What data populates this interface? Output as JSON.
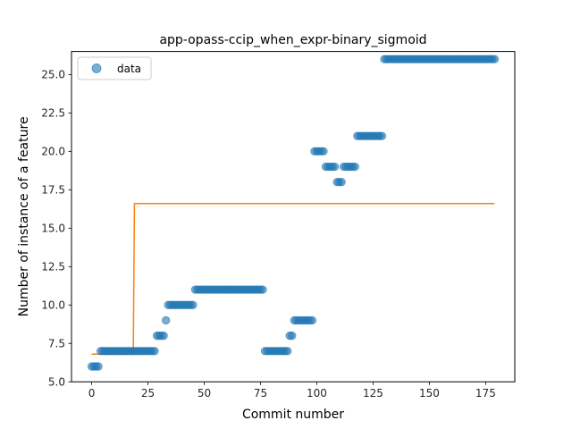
{
  "chart_data": {
    "type": "scatter",
    "title": "app-opass-ccip_when_expr-binary_sigmoid",
    "xlabel": "Commit number",
    "ylabel": "Number of instance of a feature",
    "xlim": [
      -8.95,
      187.95
    ],
    "ylim": [
      5.0,
      26.5
    ],
    "xticks": [
      0,
      25,
      50,
      75,
      100,
      125,
      150,
      175
    ],
    "yticks": [
      5.0,
      7.5,
      10.0,
      12.5,
      15.0,
      17.5,
      20.0,
      22.5,
      25.0
    ],
    "ytick_labels": [
      "5.0",
      "7.5",
      "10.0",
      "12.5",
      "15.0",
      "17.5",
      "20.0",
      "22.5",
      "25.0"
    ],
    "legend": {
      "position": "top-left",
      "entries": [
        "data"
      ]
    },
    "colors": {
      "data": "#1f77b4",
      "fit": "#ff7f0e"
    },
    "series": [
      {
        "name": "data",
        "kind": "scatter",
        "segments": [
          {
            "x_start": 0,
            "x_end": 3,
            "y": 6
          },
          {
            "x_start": 4,
            "x_end": 28,
            "y": 7
          },
          {
            "x_start": 29,
            "x_end": 32,
            "y": 8
          },
          {
            "x_start": 33,
            "x_end": 33,
            "y": 9
          },
          {
            "x_start": 34,
            "x_end": 45,
            "y": 10
          },
          {
            "x_start": 46,
            "x_end": 76,
            "y": 11
          },
          {
            "x_start": 77,
            "x_end": 87,
            "y": 7
          },
          {
            "x_start": 88,
            "x_end": 89,
            "y": 8
          },
          {
            "x_start": 90,
            "x_end": 98,
            "y": 9
          },
          {
            "x_start": 99,
            "x_end": 103,
            "y": 20
          },
          {
            "x_start": 104,
            "x_end": 108,
            "y": 19
          },
          {
            "x_start": 109,
            "x_end": 111,
            "y": 18
          },
          {
            "x_start": 112,
            "x_end": 117,
            "y": 19
          },
          {
            "x_start": 118,
            "x_end": 129,
            "y": 21
          },
          {
            "x_start": 130,
            "x_end": 179,
            "y": 26
          }
        ]
      },
      {
        "kind": "line",
        "points": [
          [
            0,
            6.8
          ],
          [
            18.5,
            6.8
          ],
          [
            19,
            16.6
          ],
          [
            179,
            16.6
          ]
        ]
      }
    ]
  }
}
